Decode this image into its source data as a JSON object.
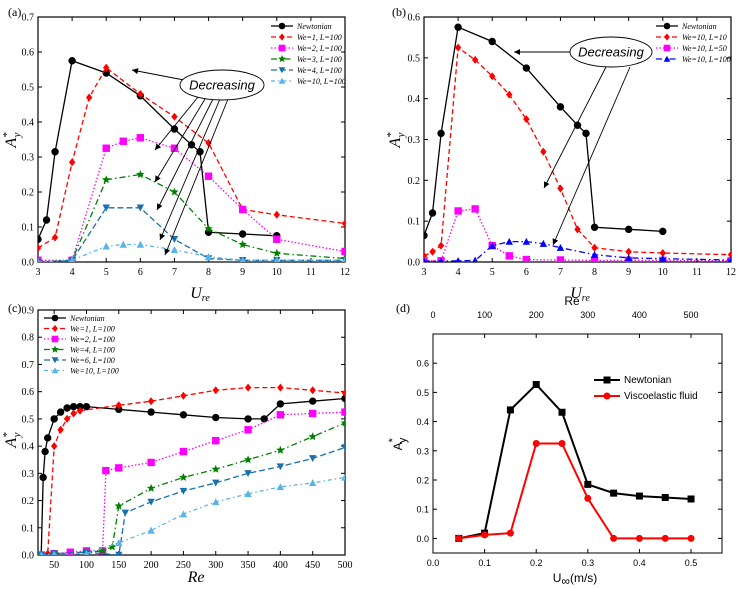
{
  "figure": {
    "panels": [
      {
        "label": "(a)",
        "xlabel_main": "U",
        "xlabel_sub": "re",
        "ylabel_main": "A",
        "ylabel_sup": "*",
        "ylabel_sub": "y",
        "annotation": "Decreasing"
      },
      {
        "label": "(b)",
        "xlabel_main": "U",
        "xlabel_sub": "re",
        "ylabel_main": "A",
        "ylabel_sup": "*",
        "ylabel_sub": "y",
        "annotation": "Decreasing"
      },
      {
        "label": "(c)",
        "xlabel_main": "Re",
        "xlabel_sub": "",
        "ylabel_main": "A",
        "ylabel_sup": "*",
        "ylabel_sub": "y",
        "annotation": ""
      },
      {
        "label": "(d)",
        "xlabel_main": "U",
        "xlabel_sub": "∞",
        "xlabel_tail": "(m/s)",
        "ylabel_main": "A",
        "ylabel_sup": "*",
        "ylabel_sub": "y",
        "top_xlabel": "Re",
        "annotation": ""
      }
    ]
  },
  "chart_data": [
    {
      "type": "line",
      "panel": "(a)",
      "xlabel": "U_re",
      "ylabel": "A*_y",
      "xlim": [
        3,
        12
      ],
      "ylim": [
        0,
        0.7
      ],
      "xticks": [
        3,
        4,
        5,
        6,
        7,
        8,
        9,
        10,
        11,
        12
      ],
      "yticks": [
        0.0,
        0.1,
        0.2,
        0.3,
        0.4,
        0.5,
        0.6,
        0.7
      ],
      "ytick_labels": [
        "0.0",
        "0.1",
        "0.2",
        "0.3",
        "0.4",
        "0.5",
        "0.6",
        "0.7"
      ],
      "legend_position": "top-right",
      "series": [
        {
          "name": "Newtonian",
          "color": "#000000",
          "marker": "circle",
          "dash": "solid",
          "x": [
            3,
            3.25,
            3.5,
            4,
            5,
            6,
            7,
            7.5,
            7.75,
            8,
            9,
            10
          ],
          "y": [
            0.065,
            0.12,
            0.315,
            0.575,
            0.54,
            0.475,
            0.38,
            0.335,
            0.315,
            0.085,
            0.08,
            0.075
          ]
        },
        {
          "name": "We=1, L=100",
          "color": "#ff0000",
          "marker": "diamond",
          "dash": "5,3",
          "x": [
            3,
            3.5,
            4,
            4.5,
            5,
            6,
            7,
            8,
            9,
            10,
            12
          ],
          "y": [
            0.04,
            0.07,
            0.285,
            0.47,
            0.555,
            0.48,
            0.415,
            0.34,
            0.15,
            0.135,
            0.11
          ]
        },
        {
          "name": "We=2, L=100",
          "color": "#ff00ff",
          "marker": "square",
          "dash": "1.5,2",
          "x": [
            3,
            4,
            5,
            5.5,
            6,
            7,
            8,
            9,
            10,
            12
          ],
          "y": [
            0.005,
            0.005,
            0.325,
            0.345,
            0.355,
            0.325,
            0.245,
            0.15,
            0.065,
            0.03
          ]
        },
        {
          "name": "We=3, L=100",
          "color": "#008000",
          "marker": "star",
          "dash": "6,3,1.5,3",
          "x": [
            3,
            4,
            5,
            6,
            7,
            8,
            9,
            10,
            12
          ],
          "y": [
            0.0,
            0.005,
            0.235,
            0.25,
            0.2,
            0.095,
            0.05,
            0.025,
            0.01
          ]
        },
        {
          "name": "We=4, L=100",
          "color": "#1a6fae",
          "marker": "triangle-down",
          "dash": "6,3",
          "x": [
            3,
            4,
            5,
            6,
            7,
            8,
            9,
            10,
            12
          ],
          "y": [
            0.0,
            0.005,
            0.155,
            0.155,
            0.065,
            0.01,
            0.005,
            0.005,
            0.005
          ]
        },
        {
          "name": "We=10, L=100",
          "color": "#5ab4e6",
          "marker": "triangle-up",
          "dash": "4,3,1.5,3",
          "x": [
            3,
            4,
            5,
            5.5,
            6,
            7,
            8,
            9,
            10,
            12
          ],
          "y": [
            0.0,
            0.005,
            0.045,
            0.05,
            0.05,
            0.035,
            0.015,
            0.005,
            0.005,
            0.005
          ]
        }
      ]
    },
    {
      "type": "line",
      "panel": "(b)",
      "xlabel": "U_re",
      "ylabel": "A*_y",
      "xlim": [
        3,
        12
      ],
      "ylim": [
        0,
        0.6
      ],
      "xticks": [
        3,
        4,
        5,
        6,
        7,
        8,
        9,
        10,
        11,
        12
      ],
      "yticks": [
        0.0,
        0.1,
        0.2,
        0.3,
        0.4,
        0.5,
        0.6
      ],
      "ytick_labels": [
        "0.0",
        "0.1",
        "0.2",
        "0.3",
        "0.4",
        "0.5",
        "0.6"
      ],
      "legend_position": "top-right",
      "series": [
        {
          "name": "Newtonian",
          "color": "#000000",
          "marker": "circle",
          "dash": "solid",
          "x": [
            3,
            3.25,
            3.5,
            4,
            5,
            6,
            7,
            7.5,
            7.75,
            8,
            9,
            10
          ],
          "y": [
            0.065,
            0.12,
            0.315,
            0.575,
            0.54,
            0.475,
            0.38,
            0.335,
            0.315,
            0.085,
            0.08,
            0.075
          ]
        },
        {
          "name": "We=10, L=10",
          "color": "#ff0000",
          "marker": "diamond",
          "dash": "5,3",
          "x": [
            3,
            3.25,
            3.5,
            4,
            4.5,
            5,
            5.5,
            6,
            6.5,
            7,
            7.5,
            8,
            9,
            10,
            12
          ],
          "y": [
            0.015,
            0.025,
            0.04,
            0.525,
            0.495,
            0.455,
            0.41,
            0.35,
            0.27,
            0.18,
            0.08,
            0.035,
            0.025,
            0.022,
            0.018
          ]
        },
        {
          "name": "We=10, L=50",
          "color": "#ff00ff",
          "marker": "square",
          "dash": "1.5,2",
          "x": [
            3,
            3.5,
            4,
            4.5,
            5,
            5.5,
            6,
            7,
            8,
            9,
            10,
            12
          ],
          "y": [
            0.003,
            0.003,
            0.125,
            0.13,
            0.04,
            0.015,
            0.006,
            0.005,
            0.004,
            0.004,
            0.004,
            0.003
          ]
        },
        {
          "name": "We=10, L=100",
          "color": "#0000ff",
          "marker": "triangle-up",
          "dash": "6,3,1.5,3",
          "x": [
            3,
            3.5,
            4,
            4.5,
            5,
            5.5,
            6,
            6.5,
            7,
            8,
            9,
            10,
            12
          ],
          "y": [
            0.002,
            0.002,
            0.003,
            0.004,
            0.04,
            0.05,
            0.05,
            0.045,
            0.035,
            0.018,
            0.01,
            0.008,
            0.005
          ]
        }
      ]
    },
    {
      "type": "line",
      "panel": "(c)",
      "xlabel": "Re",
      "ylabel": "A*_y",
      "xlim": [
        25,
        500
      ],
      "ylim": [
        0,
        0.9
      ],
      "xticks": [
        50,
        100,
        150,
        200,
        250,
        300,
        350,
        400,
        450,
        500
      ],
      "yticks": [
        0.0,
        0.1,
        0.2,
        0.3,
        0.4,
        0.5,
        0.6,
        0.7,
        0.8,
        0.9
      ],
      "ytick_labels": [
        "0.0",
        "0.1",
        "0.2",
        "0.3",
        "0.4",
        "0.5",
        "0.6",
        "0.7",
        "0.8",
        "0.9"
      ],
      "legend_position": "top-left",
      "series": [
        {
          "name": "Newtonian",
          "color": "#000000",
          "marker": "circle",
          "dash": "solid",
          "x": [
            30,
            33,
            36,
            40,
            50,
            60,
            70,
            80,
            90,
            100,
            150,
            200,
            250,
            300,
            350,
            375,
            400,
            450,
            500
          ],
          "y": [
            0.0,
            0.285,
            0.38,
            0.43,
            0.5,
            0.525,
            0.54,
            0.545,
            0.545,
            0.545,
            0.535,
            0.525,
            0.515,
            0.505,
            0.5,
            0.5,
            0.555,
            0.565,
            0.575
          ]
        },
        {
          "name": "We=1, L=100",
          "color": "#ff0000",
          "marker": "diamond",
          "dash": "5,3",
          "x": [
            30,
            40,
            50,
            60,
            70,
            80,
            90,
            150,
            200,
            250,
            300,
            350,
            400,
            450,
            500
          ],
          "y": [
            0.0,
            0.005,
            0.4,
            0.46,
            0.5,
            0.52,
            0.53,
            0.55,
            0.565,
            0.585,
            0.605,
            0.615,
            0.615,
            0.605,
            0.595
          ]
        },
        {
          "name": "We=2, L=100",
          "color": "#ff00ff",
          "marker": "square",
          "dash": "1.5,2",
          "x": [
            30,
            50,
            75,
            100,
            125,
            130,
            150,
            200,
            250,
            300,
            350,
            400,
            450,
            500
          ],
          "y": [
            0.0,
            0.005,
            0.01,
            0.015,
            0.015,
            0.31,
            0.32,
            0.34,
            0.38,
            0.42,
            0.46,
            0.515,
            0.52,
            0.525
          ]
        },
        {
          "name": "We=4, L=100",
          "color": "#008000",
          "marker": "star",
          "dash": "6,3,1.5,3",
          "x": [
            30,
            50,
            100,
            125,
            140,
            150,
            200,
            250,
            300,
            350,
            400,
            450,
            500
          ],
          "y": [
            0.0,
            0.005,
            0.01,
            0.015,
            0.03,
            0.18,
            0.245,
            0.285,
            0.315,
            0.35,
            0.385,
            0.435,
            0.485
          ]
        },
        {
          "name": "We=6, L=100",
          "color": "#1a6fae",
          "marker": "triangle-down",
          "dash": "6,3",
          "x": [
            30,
            50,
            100,
            150,
            160,
            200,
            250,
            300,
            350,
            400,
            450,
            500
          ],
          "y": [
            0.0,
            0.005,
            0.01,
            0.0,
            0.155,
            0.195,
            0.235,
            0.265,
            0.3,
            0.325,
            0.355,
            0.395
          ]
        },
        {
          "name": "We=10, L=100",
          "color": "#5ab4e6",
          "marker": "triangle-up",
          "dash": "4,3,1.5,3",
          "x": [
            30,
            50,
            100,
            150,
            200,
            250,
            300,
            350,
            400,
            450,
            500
          ],
          "y": [
            0.0,
            0.003,
            0.005,
            0.045,
            0.09,
            0.15,
            0.195,
            0.225,
            0.25,
            0.265,
            0.285
          ]
        }
      ]
    },
    {
      "type": "line",
      "panel": "(d)",
      "xlabel": "U∞(m/s)",
      "ylabel": "A*_y",
      "xlim": [
        0,
        0.56
      ],
      "ylim": [
        -0.05,
        0.7
      ],
      "xticks": [
        0.0,
        0.1,
        0.2,
        0.3,
        0.4,
        0.5
      ],
      "xtick_labels": [
        "0.0",
        "0.1",
        "0.2",
        "0.3",
        "0.4",
        "0.5"
      ],
      "yticks": [
        0.0,
        0.1,
        0.2,
        0.3,
        0.4,
        0.5,
        0.6
      ],
      "ytick_labels": [
        "0.0",
        "0.1",
        "0.2",
        "0.3",
        "0.4",
        "0.5",
        "0.6"
      ],
      "top_xticks": [
        0,
        100,
        200,
        300,
        400,
        500
      ],
      "top_xtick_labels": [
        "0",
        "100",
        "200",
        "300",
        "400",
        "500"
      ],
      "top_xlim": [
        0,
        560
      ],
      "legend_position": "top-right",
      "series": [
        {
          "name": "Newtonian",
          "color": "#000000",
          "marker": "square",
          "dash": "solid",
          "x": [
            0.05,
            0.1,
            0.15,
            0.2,
            0.25,
            0.3,
            0.35,
            0.4,
            0.45,
            0.5
          ],
          "y": [
            0.0,
            0.018,
            0.44,
            0.527,
            0.432,
            0.185,
            0.155,
            0.145,
            0.14,
            0.135
          ]
        },
        {
          "name": "Viscoelastic fluid",
          "color": "#ff0000",
          "marker": "circle",
          "dash": "solid",
          "x": [
            0.05,
            0.1,
            0.15,
            0.2,
            0.25,
            0.3,
            0.35,
            0.4,
            0.45,
            0.5
          ],
          "y": [
            0.0,
            0.012,
            0.018,
            0.325,
            0.325,
            0.137,
            0.0,
            0.0,
            0.0,
            0.0
          ]
        }
      ]
    }
  ]
}
